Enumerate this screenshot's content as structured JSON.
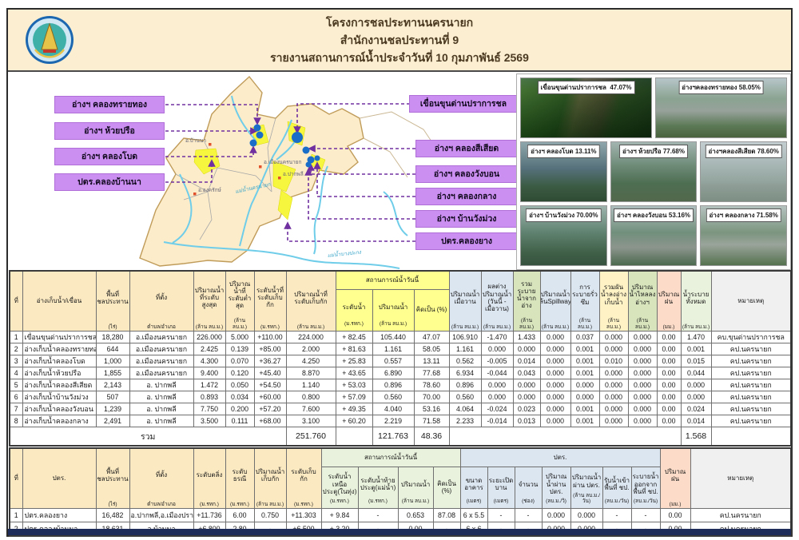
{
  "header": {
    "title1": "โครงการชลประทานนครนายก",
    "title2": "สำนักงานชลประทานที่ 9",
    "title3": "รายงานสถานการณ์น้ำประจำวันที่ 10  กุมภาพันธ์  2569"
  },
  "map": {
    "left_labels": [
      "อ่างฯ คลองทรายทอง",
      "อ่างฯ ห้วยปรือ",
      "อ่างฯ คลองโบด",
      "ปตร.คลองบ้านนา"
    ],
    "right_labels": [
      "เขื่อนขุนด่านปราการชล",
      "อ่างฯ คลองสีเสียด",
      "อ่างฯ คลองวังบอน",
      "อ่างฯ คลองกลาง",
      "อ่างฯ บ้านวังม่วง",
      "ปตร.คลองยาง"
    ],
    "districts": [
      "อ.บ้านนา",
      "อ.เมืองนครนายก",
      "อ.ปากพลี",
      "อ.องครักษ์"
    ],
    "rivers": [
      "แม่น้ำนครนายก",
      "แม่น้ำบางปะกง"
    ],
    "accent_purple": "#7030a0",
    "label_fill": "#cb8ff2"
  },
  "photos": [
    {
      "label": "เขื่อนขุนด่านปราการชล",
      "percent": "47.07%"
    },
    {
      "label": "อ่างฯคลองทรายทอง",
      "percent": "58.05%"
    },
    {
      "label": "อ่างฯ คลองโบด",
      "percent": "13.11%"
    },
    {
      "label": "อ่างฯ ห้วยปรือ",
      "percent": "77.68%"
    },
    {
      "label": "อ่างฯคลองสีเสียด",
      "percent": "78.60%"
    },
    {
      "label": "อ่างฯ บ้านวังม่วง",
      "percent": "70.00%"
    },
    {
      "label": "อ่างฯ คลองวังบอน",
      "percent": "53.16%"
    },
    {
      "label": "อ่างฯ คลองกลาง",
      "percent": "71.58%"
    }
  ],
  "t1": {
    "groups": {
      "today": "สถานการณ์น้ำวันนี้"
    },
    "columns": [
      {
        "label": "ที่",
        "unit": ""
      },
      {
        "label": "อ่างเก็บน้ำ/เขื่อน",
        "unit": ""
      },
      {
        "label": "พื้นที่ชลประทาน",
        "unit": "(ไร่)"
      },
      {
        "label": "ที่ตั้ง",
        "unit": "ตำบล/อำเภอ"
      },
      {
        "label": "ปริมาณน้ำที่ระดับสูงสุด",
        "unit": "(ล้าน ลบ.ม.)"
      },
      {
        "label": "ปริมาณน้ำที่ระดับต่ำสุด",
        "unit": "(ล้าน ลบ.ม.)"
      },
      {
        "label": "ระดับน้ำที่ระดับเก็บกัก",
        "unit": "(ม.รทก.)"
      },
      {
        "label": "ปริมาณน้ำที่ระดับเก็บกัก",
        "unit": "(ล้าน ลบ.ม.)"
      },
      {
        "label": "ระดับน้ำ",
        "unit": "(ม.รทก.)"
      },
      {
        "label": "ปริมาณน้ำ",
        "unit": "(ล้าน ลบ.ม.)"
      },
      {
        "label": "คิดเป็น (%)",
        "unit": ""
      },
      {
        "label": "ปริมาณน้ำเมื่อวาน",
        "unit": "(ล้าน ลบ.ม.)"
      },
      {
        "label": "ผลต่างปริมาณน้ำ (วันนี้ - เมื่อวาน)",
        "unit": "(ล้าน ลบ.ม.)"
      },
      {
        "label": "รวมระบายน้ำจากอ่าง",
        "unit": "(ล้าน ลบ.ม.)"
      },
      {
        "label": "ปริมาณน้ำล้นSpillway",
        "unit": "(ล้าน ลบ.ม.)"
      },
      {
        "label": "การระบายรั่วซึม",
        "unit": "(ล้าน ลบ.ม.)"
      },
      {
        "label": "รวมผันน้ำลงอ่างเก็บน้ำ",
        "unit": "(ล้าน ลบ.ม.)"
      },
      {
        "label": "ปริมาณน้ำไหลลงอ่างฯ",
        "unit": "(ล้าน ลบ.ม.)"
      },
      {
        "label": "ปริมาณฝน",
        "unit": "(มม.)"
      },
      {
        "label": "น้ำระบายทั้งหมด",
        "unit": "(ล้าน ลบ.ม.)"
      },
      {
        "label": "หมายเหตุ",
        "unit": ""
      }
    ],
    "rows": [
      [
        "1",
        "เขื่อนขุนด่านปราการชล",
        "18,280",
        "อ.เมืองนครนายก",
        "226.000",
        "5.000",
        "+110.00",
        "224.000",
        "+ 82.45",
        "105.440",
        "47.07",
        "106.910",
        "-1.470",
        "1.433",
        "0.000",
        "0.037",
        "0.000",
        "0.000",
        "0.00",
        "1.470",
        "คบ.ขุนด่านปราการชล"
      ],
      [
        "2",
        "อ่างเก็บน้ำคลองทรายทอง",
        "644",
        "อ.เมืองนครนายก",
        "2.425",
        "0.139",
        "+85.00",
        "2.000",
        "+ 81.63",
        "1.161",
        "58.05",
        "1.161",
        "0.000",
        "0.000",
        "0.000",
        "0.001",
        "0.000",
        "0.000",
        "0.00",
        "0.001",
        "คป.นครนายก"
      ],
      [
        "3",
        "อ่างเก็บน้ำคลองโบด",
        "1,000",
        "อ.เมืองนครนายก",
        "4.300",
        "0.070",
        "+36.27",
        "4.250",
        "+ 25.83",
        "0.557",
        "13.11",
        "0.562",
        "-0.005",
        "0.014",
        "0.000",
        "0.001",
        "0.010",
        "0.000",
        "0.00",
        "0.015",
        "คป.นครนายก"
      ],
      [
        "4",
        "อ่างเก็บน้ำห้วยปรือ",
        "1,855",
        "อ.เมืองนครนายก",
        "9.400",
        "0.120",
        "+45.40",
        "8.870",
        "+ 43.65",
        "6.890",
        "77.68",
        "6.934",
        "-0.044",
        "0.043",
        "0.000",
        "0.001",
        "0.000",
        "0.000",
        "0.00",
        "0.044",
        "คป.นครนายก"
      ],
      [
        "5",
        "อ่างเก็บน้ำคลองสีเสียด",
        "2,143",
        "อ. ปากพลี",
        "1.472",
        "0.050",
        "+54.50",
        "1.140",
        "+ 53.03",
        "0.896",
        "78.60",
        "0.896",
        "0.000",
        "0.000",
        "0.000",
        "0.000",
        "0.000",
        "0.000",
        "0.00",
        "0.000",
        "คป.นครนายก"
      ],
      [
        "6",
        "อ่างเก็บน้ำบ้านวังม่วง",
        "507",
        "อ. ปากพลี",
        "0.893",
        "0.034",
        "+60.00",
        "0.800",
        "+ 57.09",
        "0.560",
        "70.00",
        "0.560",
        "0.000",
        "0.000",
        "0.000",
        "0.000",
        "0.000",
        "0.000",
        "0.00",
        "0.000",
        "คป.นครนายก"
      ],
      [
        "7",
        "อ่างเก็บน้ำคลองวังบอน",
        "1,239",
        "อ. ปากพลี",
        "7.750",
        "0.200",
        "+57.20",
        "7.600",
        "+ 49.35",
        "4.040",
        "53.16",
        "4.064",
        "-0.024",
        "0.023",
        "0.000",
        "0.001",
        "0.000",
        "0.000",
        "0.00",
        "0.024",
        "คป.นครนายก"
      ],
      [
        "8",
        "อ่างเก็บน้ำคลองกลาง",
        "2,491",
        "อ. ปากพลี",
        "3.500",
        "0.111",
        "+68.00",
        "3.100",
        "+ 60.20",
        "2.219",
        "71.58",
        "2.233",
        "-0.014",
        "0.013",
        "0.000",
        "0.001",
        "0.000",
        "0.000",
        "0.00",
        "0.014",
        "คป.นครนายก"
      ]
    ],
    "total": {
      "label": "รวม",
      "storage": "251.760",
      "volume": "121.763",
      "percent": "48.36",
      "release": "1.568"
    }
  },
  "t2": {
    "groups": {
      "today": "สถานการณ์น้ำวันนี้",
      "gate": "ปตร."
    },
    "columns": [
      {
        "label": "ที่",
        "unit": ""
      },
      {
        "label": "ปตร.",
        "unit": ""
      },
      {
        "label": "พื้นที่ชลประทาน",
        "unit": "(ไร่)"
      },
      {
        "label": "ที่ตั้ง",
        "unit": "ตำบล/อำเภอ"
      },
      {
        "label": "ระดับตลิ่ง",
        "unit": "(ม.รทก.)"
      },
      {
        "label": "ระดับธรณี",
        "unit": "(ม.รทก.)"
      },
      {
        "label": "ปริมาณน้ำเก็บกัก",
        "unit": "(ล้าน ลบ.ม.)"
      },
      {
        "label": "ระดับเก็บกัก",
        "unit": "(ม.รทก.)"
      },
      {
        "label": "ระดับน้ำเหนือประตู(ในทุ่ง)",
        "unit": "(ม.รทก.)"
      },
      {
        "label": "ระดับน้ำท้ายประตู(แม่น้ำ)",
        "unit": "(ม.รทก.)"
      },
      {
        "label": "ปริมาณน้ำ",
        "unit": "(ล้าน ลบ.ม.)"
      },
      {
        "label": "คิดเป็น (%)",
        "unit": ""
      },
      {
        "label": "ขนาดอาคาร",
        "unit": "(เมตร)"
      },
      {
        "label": "ระยะเปิดบาน",
        "unit": "(เมตร)"
      },
      {
        "label": "จำนวน",
        "unit": "(ช่อง)"
      },
      {
        "label": "ปริมาณน้ำผ่าน ปตร.",
        "unit": "(ลบ.ม./วิ)"
      },
      {
        "label": "ปริมาณน้ำผ่าน ปตร.",
        "unit": "(ล้าน ลบ.ม./วัน)"
      },
      {
        "label": "รับน้ำเข้าพื้นที่ ชป.",
        "unit": "(ลบ.ม./วัน)"
      },
      {
        "label": "ระบายน้ำออกจากพื้นที่ ชป.",
        "unit": "(ลบ.ม./วัน)"
      },
      {
        "label": "ปริมาณฝน",
        "unit": "(มม.)"
      },
      {
        "label": "หมายเหตุ",
        "unit": ""
      }
    ],
    "rows": [
      [
        "1",
        "ปตร.คลองยาง",
        "16,482",
        "อ.ปากพลี,อ.เมืองปราจีน",
        "+11.736",
        "6.00",
        "0.750",
        "+11.303",
        "+ 9.84",
        "-",
        "0.653",
        "87.08",
        "6 x 5.5",
        "-",
        "-",
        "0.000",
        "0.000",
        "-",
        "-",
        "0.00",
        "คป.นครนายก"
      ],
      [
        "2",
        "ปตร.คลองบ้านนา",
        "18,631",
        "อ.บ้านนา",
        "+6.800",
        "2.80",
        "-",
        "+6.500",
        "+ 3.20",
        "-",
        "0.00",
        "-",
        "6 x 6",
        "-",
        "-",
        "0.000",
        "0.000",
        "-",
        "-",
        "0.00",
        "คป.นครนายก"
      ]
    ]
  }
}
